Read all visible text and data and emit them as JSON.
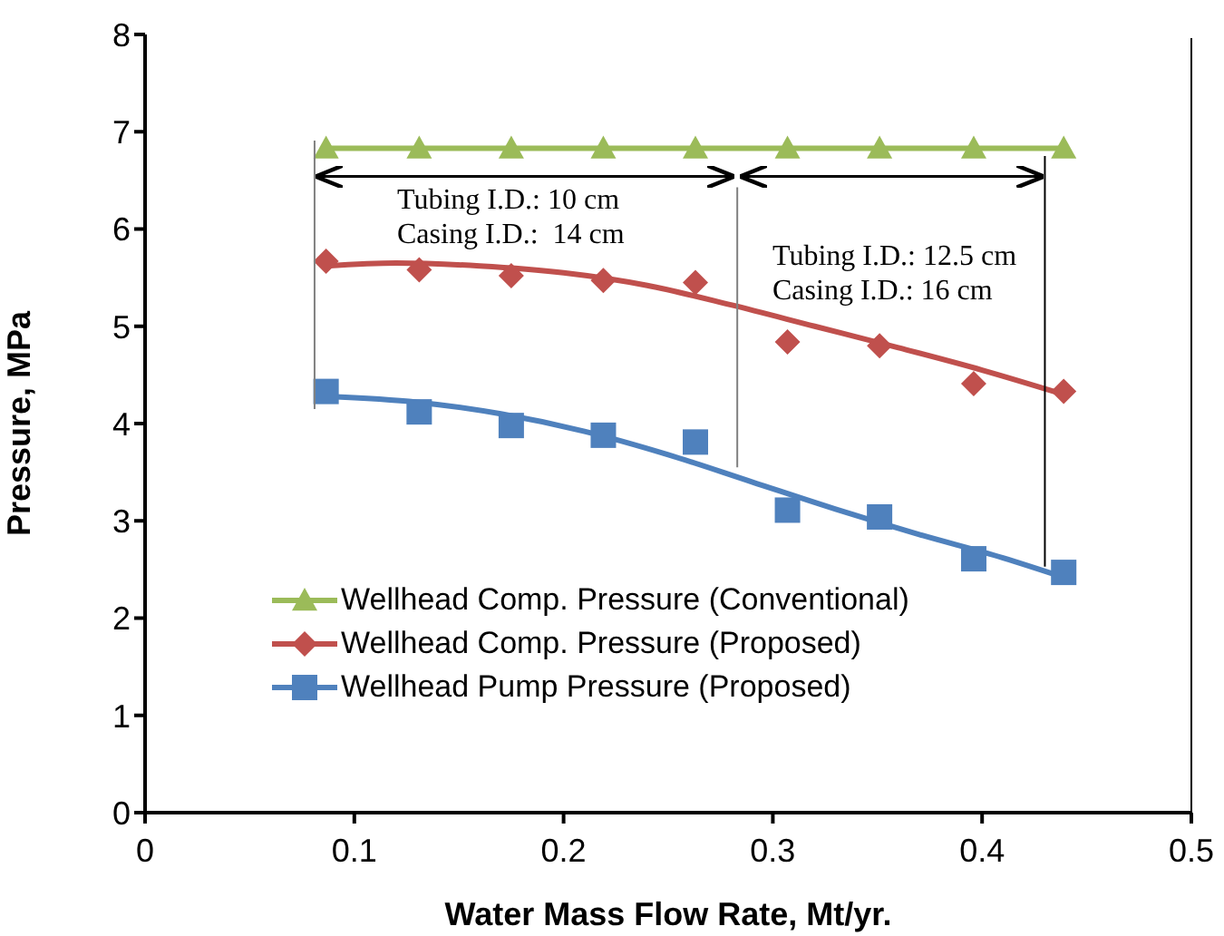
{
  "chart_data": {
    "type": "scatter",
    "xlabel": "Water Mass Flow Rate, Mt/yr.",
    "ylabel": "Pressure, MPa",
    "xlim": [
      0,
      0.5
    ],
    "xticks": [
      0,
      0.1,
      0.2,
      0.3,
      0.4,
      0.5
    ],
    "ylim": [
      0,
      8
    ],
    "yticks": [
      0,
      1,
      2,
      3,
      4,
      5,
      6,
      7,
      8
    ],
    "grid": false,
    "legend": "bottom left",
    "annotations": [
      "Tubing I.D.: 10 cm\nCasing I.D.:  14 cm",
      "Tubing I.D.: 12.5 cm\nCasing I.D.: 16 cm"
    ],
    "ref_lines": [
      {
        "axis": "x",
        "value": 0.081,
        "color": "#808080"
      },
      {
        "axis": "x",
        "value": 0.283,
        "color": "#808080"
      },
      {
        "axis": "x",
        "value": 0.43,
        "color": "#000000"
      }
    ],
    "series": [
      {
        "name": "Wellhead Comp. Pressure (Conventional)",
        "type": "line",
        "color": "#9bbb59",
        "marker": "triangle",
        "x": [
          0.0865,
          0.131,
          0.175,
          0.219,
          0.263,
          0.307,
          0.351,
          0.396,
          0.439
        ],
        "values": [
          6.83,
          6.83,
          6.83,
          6.83,
          6.83,
          6.83,
          6.83,
          6.83,
          6.83
        ]
      },
      {
        "name": "Wellhead Comp. Pressure (Proposed)",
        "color": "#c0504d",
        "marker": "diamond",
        "x": [
          0.0865,
          0.131,
          0.175,
          0.219,
          0.263,
          0.307,
          0.351,
          0.396,
          0.439
        ],
        "values": [
          5.67,
          5.58,
          5.52,
          5.47,
          5.45,
          4.84,
          4.8,
          4.41,
          4.33
        ]
      },
      {
        "name": "Wellhead Pump Pressure (Proposed)",
        "color": "#4f81bd",
        "marker": "square",
        "x": [
          0.0865,
          0.131,
          0.175,
          0.219,
          0.263,
          0.307,
          0.351,
          0.396,
          0.439
        ],
        "values": [
          4.33,
          4.12,
          3.98,
          3.88,
          3.81,
          3.11,
          3.04,
          2.61,
          2.47
        ]
      },
      {
        "type": "line",
        "color": "#c0504d",
        "marker": "none",
        "x": [
          0.0865,
          0.12,
          0.16,
          0.2,
          0.24,
          0.28,
          0.32,
          0.36,
          0.4,
          0.439
        ],
        "values": [
          5.62,
          5.65,
          5.62,
          5.55,
          5.42,
          5.22,
          5.0,
          4.78,
          4.55,
          4.3
        ]
      },
      {
        "type": "line",
        "color": "#4f81bd",
        "marker": "none",
        "x": [
          0.0865,
          0.13,
          0.17,
          0.21,
          0.25,
          0.29,
          0.33,
          0.37,
          0.41,
          0.439
        ],
        "values": [
          4.28,
          4.22,
          4.1,
          3.92,
          3.68,
          3.4,
          3.12,
          2.86,
          2.62,
          2.42
        ]
      }
    ]
  }
}
